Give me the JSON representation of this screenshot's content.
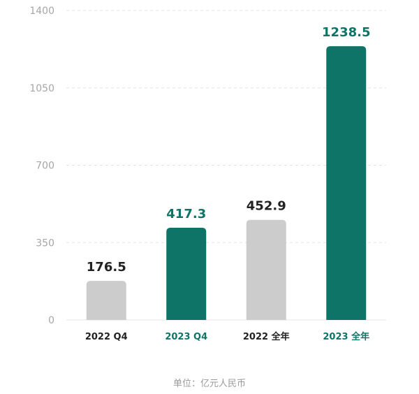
{
  "chart_data": {
    "type": "bar",
    "categories": [
      "2022 Q4",
      "2023 Q4",
      "2022 全年",
      "2023 全年"
    ],
    "values": [
      176.5,
      417.3,
      452.9,
      1238.5
    ],
    "value_labels": [
      "176.5",
      "417.3",
      "452.9",
      "1238.5"
    ],
    "bar_colors": [
      "#cccccc",
      "#0e7468",
      "#cccccc",
      "#0e7468"
    ],
    "label_colors": [
      "#222222",
      "#0e7468",
      "#222222",
      "#0e7468"
    ],
    "yticks": [
      0,
      350,
      700,
      1050,
      1400
    ],
    "ylim": [
      0,
      1400
    ],
    "grid": true,
    "legend": "none",
    "unit_note": "单位：亿元人民币"
  }
}
